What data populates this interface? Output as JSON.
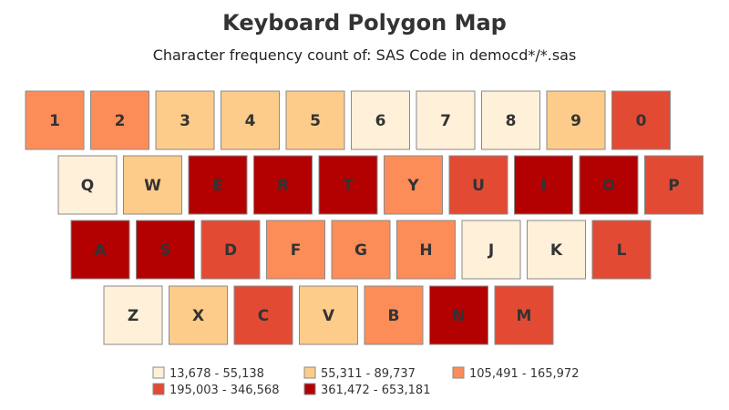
{
  "chart_data": {
    "type": "heatmap",
    "title": "Keyboard Polygon Map",
    "subtitle": "Character frequency count of: SAS Code in democd*/*.sas",
    "legend": {
      "placement": "bottom",
      "bins": [
        {
          "label": "13,678 - 55,138",
          "color": "#fef0d9"
        },
        {
          "label": "55,311 - 89,737",
          "color": "#fdcc8a"
        },
        {
          "label": "105,491 - 165,972",
          "color": "#fc8d59"
        },
        {
          "label": "195,003 - 346,568",
          "color": "#e34a33"
        },
        {
          "label": "361,472 - 653,181",
          "color": "#b30000"
        }
      ]
    },
    "rows": [
      {
        "keys": [
          {
            "key": "1",
            "bin": 2
          },
          {
            "key": "2",
            "bin": 2
          },
          {
            "key": "3",
            "bin": 1
          },
          {
            "key": "4",
            "bin": 1
          },
          {
            "key": "5",
            "bin": 1
          },
          {
            "key": "6",
            "bin": 0
          },
          {
            "key": "7",
            "bin": 0
          },
          {
            "key": "8",
            "bin": 0
          },
          {
            "key": "9",
            "bin": 1
          },
          {
            "key": "0",
            "bin": 3
          }
        ]
      },
      {
        "keys": [
          {
            "key": "Q",
            "bin": 0
          },
          {
            "key": "W",
            "bin": 1
          },
          {
            "key": "E",
            "bin": 4
          },
          {
            "key": "R",
            "bin": 4
          },
          {
            "key": "T",
            "bin": 4
          },
          {
            "key": "Y",
            "bin": 2
          },
          {
            "key": "U",
            "bin": 3
          },
          {
            "key": "I",
            "bin": 4
          },
          {
            "key": "O",
            "bin": 4
          },
          {
            "key": "P",
            "bin": 3
          }
        ]
      },
      {
        "keys": [
          {
            "key": "A",
            "bin": 4
          },
          {
            "key": "S",
            "bin": 4
          },
          {
            "key": "D",
            "bin": 3
          },
          {
            "key": "F",
            "bin": 2
          },
          {
            "key": "G",
            "bin": 2
          },
          {
            "key": "H",
            "bin": 2
          },
          {
            "key": "J",
            "bin": 0
          },
          {
            "key": "K",
            "bin": 0
          },
          {
            "key": "L",
            "bin": 3
          }
        ]
      },
      {
        "keys": [
          {
            "key": "Z",
            "bin": 0
          },
          {
            "key": "X",
            "bin": 1
          },
          {
            "key": "C",
            "bin": 3
          },
          {
            "key": "V",
            "bin": 1
          },
          {
            "key": "B",
            "bin": 2
          },
          {
            "key": "N",
            "bin": 4
          },
          {
            "key": "M",
            "bin": 3
          }
        ]
      }
    ]
  }
}
